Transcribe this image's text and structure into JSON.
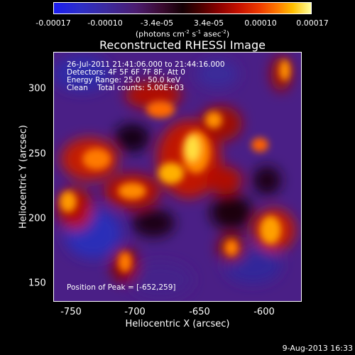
{
  "colorbar": {
    "ticks": [
      "-0.00017",
      "-0.00010",
      "-3.4e-05",
      "3.4e-05",
      "0.00010",
      "0.00017"
    ],
    "unit_pre": "(photons cm",
    "unit_exp1": "-2",
    "unit_mid1": " s",
    "unit_exp2": "-1",
    "unit_mid2": " asec",
    "unit_exp3": "-2",
    "unit_post": ")"
  },
  "title": "Reconstructed RHESSI Image",
  "info": {
    "line1": "26-Jul-2011 21:41:06.000 to 21:44:16.000",
    "line2": "Detectors: 4F 5F 6F 7F 8F, Att 0",
    "line3": "Energy Range: 25.0 - 50.0 keV",
    "line4": "Clean    Total counts: 5.00E+03"
  },
  "peak": "Position of Peak = [-652,259]",
  "axes": {
    "xlabel": "Heliocentric X (arcsec)",
    "ylabel": "Heliocentric Y (arcsec)",
    "xticks": [
      "-750",
      "-700",
      "-650",
      "-600"
    ],
    "yticks": [
      "300",
      "250",
      "200",
      "150"
    ]
  },
  "date": "9-Aug-2013 16:33"
}
